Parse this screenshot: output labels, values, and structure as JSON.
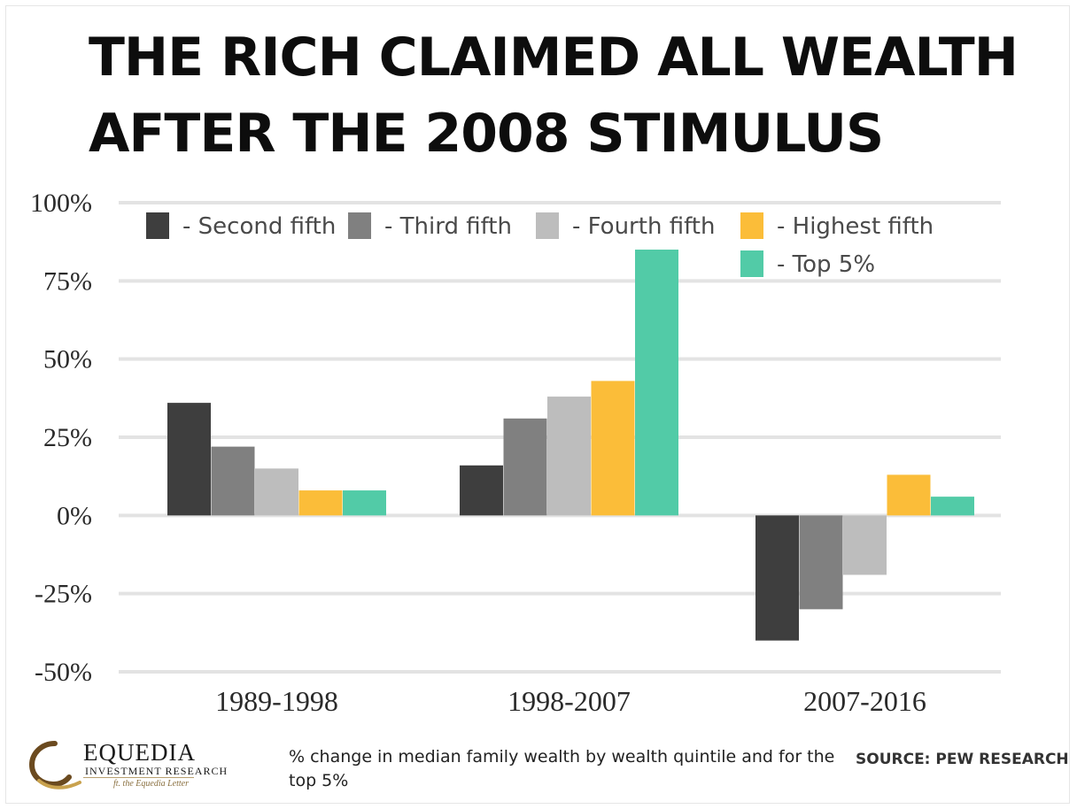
{
  "header": {
    "title_line1": "THE RICH CLAIMED ALL WEALTH",
    "title_line2": "AFTER THE 2008 STIMULUS"
  },
  "chart_data": {
    "type": "bar",
    "categories": [
      "1989-1998",
      "1998-2007",
      "2007-2016"
    ],
    "series": [
      {
        "name": "- Second fifth",
        "color": "#3e3e3e",
        "values": [
          36,
          16,
          -40
        ]
      },
      {
        "name": "- Third fifth",
        "color": "#808080",
        "values": [
          22,
          31,
          -30
        ]
      },
      {
        "name": "- Fourth fifth",
        "color": "#bdbdbd",
        "values": [
          15,
          38,
          -19
        ]
      },
      {
        "name": "- Highest fifth",
        "color": "#fbbd39",
        "values": [
          8,
          43,
          13
        ]
      },
      {
        "name": "- Top 5%",
        "color": "#52cba7",
        "values": [
          8,
          85,
          6
        ]
      }
    ],
    "yticks": [
      {
        "value": 100,
        "label": "100%"
      },
      {
        "value": 75,
        "label": "75%"
      },
      {
        "value": 50,
        "label": "50%"
      },
      {
        "value": 25,
        "label": "25%"
      },
      {
        "value": 0,
        "label": "0%"
      },
      {
        "value": -25,
        "label": "-25%"
      },
      {
        "value": -50,
        "label": "-50%"
      }
    ],
    "ylim": [
      -50,
      100
    ],
    "grid": true,
    "legend_position": "top"
  },
  "footer": {
    "logo_name": "EQUEDIA",
    "logo_subtitle": "INVESTMENT RESEARCH",
    "logo_tagline": "ft. the Equedia Letter",
    "caption": "% change in median family wealth by wealth quintile and for the top 5%",
    "source": "SOURCE:  PEW RESEARCH"
  }
}
